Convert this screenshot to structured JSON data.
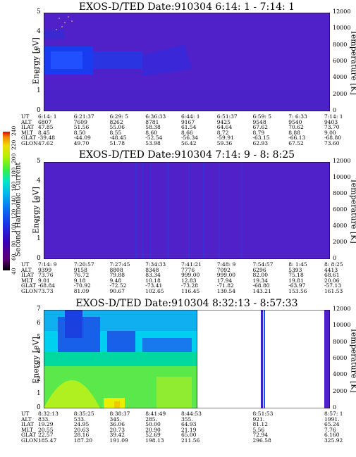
{
  "chart_data": [
    {
      "type": "heatmap",
      "title": "EXOS-D/TED   Date:910304  6:14: 1 - 7:14: 1",
      "ylabel": "Energy [eV]",
      "y2label": "Temperature [K]",
      "ylim": [
        0,
        5
      ],
      "y2lim": [
        0,
        12000
      ],
      "yticks": [
        "0",
        "1",
        "2",
        "3",
        "4",
        "5"
      ],
      "y2ticks": [
        "0",
        "2000",
        "4000",
        "6000",
        "8000",
        "10000",
        "12000"
      ],
      "ephemeris": {
        "labels": [
          "UT",
          "ALT",
          "ILAT",
          "MLT",
          "GLAT",
          "GLON"
        ],
        "columns": [
          [
            "6:14: 1",
            "6807",
            "47.85",
            "8.45",
            "-39.48",
            "47.62"
          ],
          [
            "6:21:37",
            "7609",
            "51.56",
            "8.50",
            "-44.09",
            "49.70"
          ],
          [
            "6:29: 5",
            "8262",
            "55.06",
            "8.55",
            "-48.45",
            "51.78"
          ],
          [
            "6:36:33",
            "8781",
            "58.38",
            "8.60",
            "-52.54",
            "53.98"
          ],
          [
            "6:44: 1",
            "9167",
            "61.54",
            "8.66",
            "-56.34",
            "56.42"
          ],
          [
            "6:51:37",
            "9425",
            "64.64",
            "8.72",
            "-59.91",
            "59.36"
          ],
          [
            "6:59: 5",
            "9548",
            "67.62",
            "8.79",
            "-63.15",
            "62.93"
          ],
          [
            "7: 6:33",
            "9540",
            "70.62",
            "8.88",
            "-66.13",
            "67.52"
          ],
          [
            "7:14: 1",
            "9403",
            "73.70",
            "9.00",
            "-68.80",
            "73.60"
          ]
        ]
      }
    },
    {
      "type": "heatmap",
      "title": "EXOS-D/TED   Date:910304  7:14: 9 -  8: 8:25",
      "ylabel": "Energy [eV]",
      "y2label": "Temperature [K]",
      "ylim": [
        0,
        5
      ],
      "y2lim": [
        0,
        12000
      ],
      "yticks": [
        "0",
        "1",
        "2",
        "3",
        "4",
        "5"
      ],
      "y2ticks": [
        "0",
        "2000",
        "4000",
        "6000",
        "8000",
        "10000",
        "12000"
      ],
      "ephemeris": {
        "labels": [
          "UT",
          "ALT",
          "ILAT",
          "MLT",
          "GLAT",
          "GLON"
        ],
        "columns": [
          [
            "7:14: 9",
            "9399",
            "73.76",
            "9.01",
            "-68.84",
            "73.73"
          ],
          [
            "7:20:57",
            "9158",
            "76.72",
            "9.18",
            "-70.92",
            "81.09"
          ],
          [
            "7:27:45",
            "8808",
            "79.88",
            "9.48",
            "-72.52",
            "90.67"
          ],
          [
            "7:34:33",
            "8348",
            "83.34",
            "10.18",
            "-73.41",
            "102.65"
          ],
          [
            "7:41:21",
            "7776",
            "999.00",
            "12.83",
            "-73.28",
            "116.45"
          ],
          [
            "7:48: 9",
            "7092",
            "999.00",
            "17.94",
            "-71.82",
            "130.54"
          ],
          [
            "7:54:57",
            "6296",
            "82.00",
            "19.34",
            "-68.80",
            "143.21"
          ],
          [
            "8: 1:45",
            "5393",
            "75.18",
            "19.81",
            "-63.97",
            "153.56"
          ],
          [
            "8: 8:25",
            "4413",
            "68.61",
            "20.06",
            "-57.13",
            "161.53"
          ]
        ]
      }
    },
    {
      "type": "heatmap",
      "title": "EXOS-D/TED   Date:910304  8:32:13 -  8:57:33",
      "ylabel": "Energy [eV]",
      "y2label": "Temperature [K]",
      "ylim": [
        0,
        7
      ],
      "y2lim": [
        0,
        12000
      ],
      "yticks": [
        "0",
        "1",
        "2",
        "3",
        "4",
        "5",
        "6",
        "7"
      ],
      "y2ticks": [
        "0",
        "2000",
        "4000",
        "6000",
        "8000",
        "10000",
        "12000"
      ],
      "ephemeris": {
        "labels": [
          "UT",
          "ALT",
          "ILAT",
          "MLT",
          "GLAT",
          "GLON"
        ],
        "columns": [
          [
            "8:32:13",
            "833.",
            "19.29",
            "20.55",
            "22.57",
            "185.47"
          ],
          [
            "8:35:25",
            "533.",
            "24.95",
            "20.63",
            "28.16",
            "187.20"
          ],
          [
            "8:38:37",
            "345.",
            "36.06",
            "20.73",
            "39.42",
            "191.09"
          ],
          [
            "8:41:49",
            "285.",
            "50.00",
            "20.90",
            "52.69",
            "198.13"
          ],
          [
            "8:44:53",
            "355.",
            "64.93",
            "21.19",
            "65.00",
            "211.56"
          ],
          [
            "",
            "",
            "",
            "",
            "",
            ""
          ],
          [
            "8:51:53",
            "921.",
            "81.12",
            "5.56",
            "72.94",
            "296.58"
          ],
          [
            "",
            "",
            "",
            "",
            "",
            ""
          ],
          [
            "8:57: 1",
            "1991.",
            "65.24",
            "7.76",
            "6.160",
            "325.92"
          ]
        ]
      }
    }
  ],
  "colorbar": {
    "label": "Second Harmonic Current",
    "ticks": [
      "40",
      "60",
      "80",
      "100",
      "120",
      "140",
      "160",
      "180",
      "200",
      "220",
      "240"
    ],
    "colors": [
      "#000000",
      "#5a007a",
      "#3b00b0",
      "#1f2de0",
      "#0a6ef0",
      "#00b4f0",
      "#00e6c8",
      "#3cf03c",
      "#b4f000",
      "#f0dc00",
      "#f08c00",
      "#e60000"
    ]
  }
}
